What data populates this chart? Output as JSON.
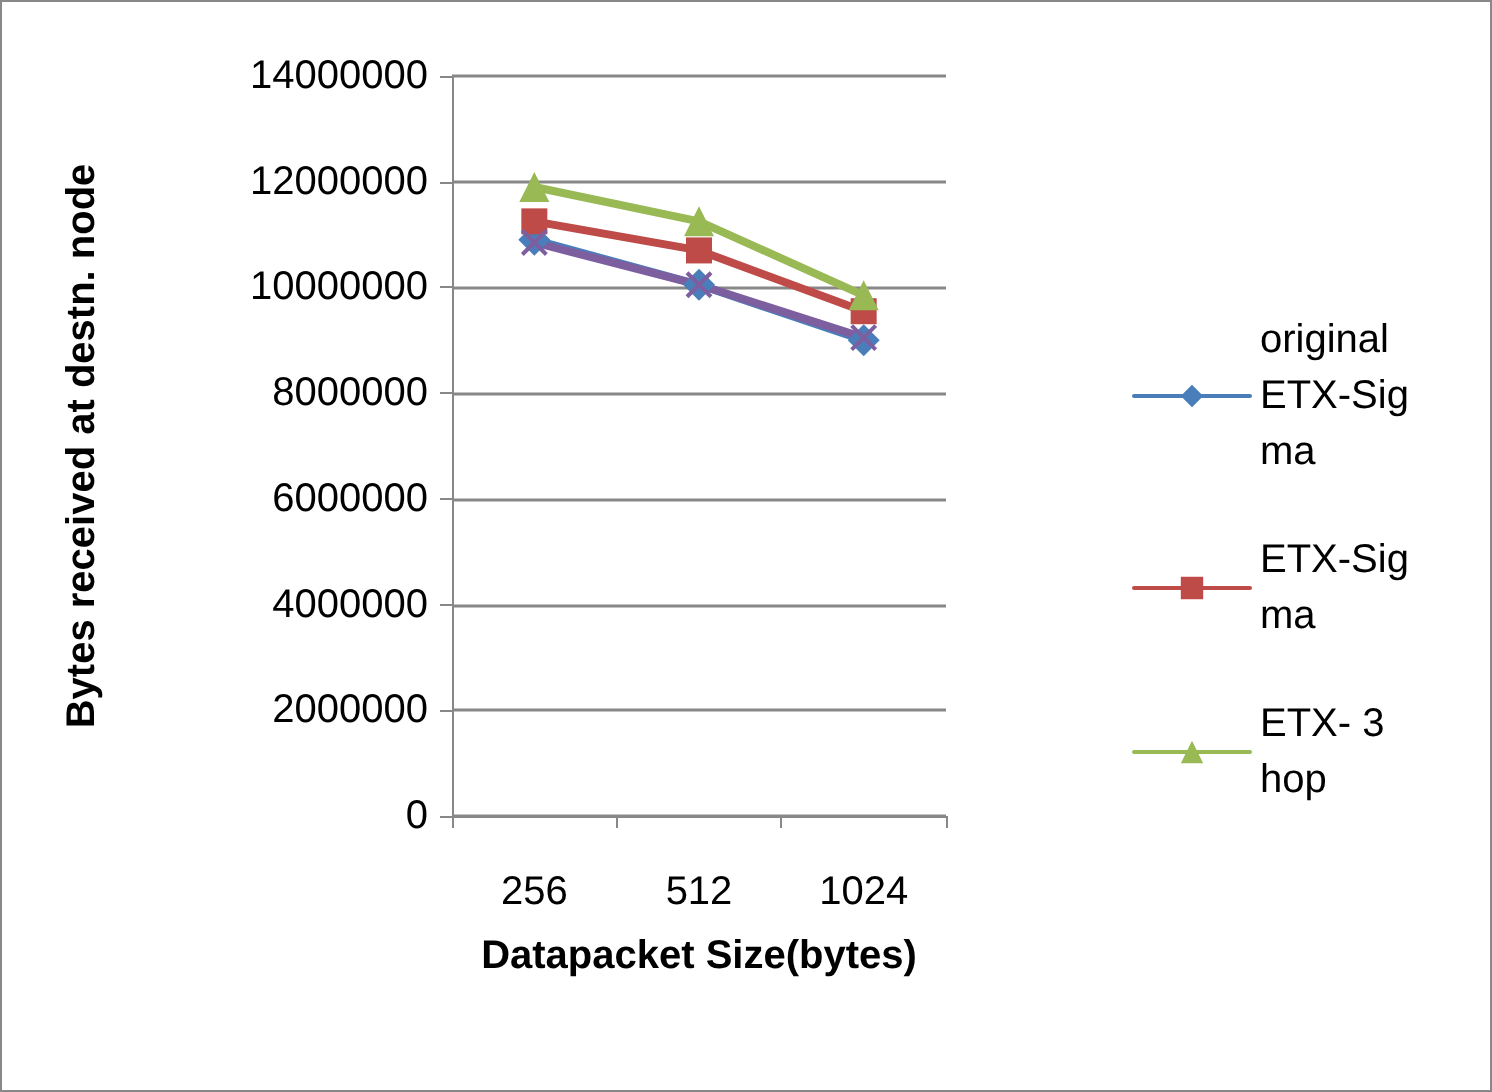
{
  "chart_data": {
    "type": "line",
    "xlabel": "Datapacket Size(bytes)",
    "ylabel": "Bytes received at destn. node",
    "categories": [
      "256",
      "512",
      "1024"
    ],
    "series": [
      {
        "name": "original ETX-Sigma",
        "color": "#4a7ebb",
        "marker": "diamond",
        "values": [
          10900000,
          10050000,
          9000000
        ]
      },
      {
        "name": "ETX-Sigma",
        "color": "#be4b48",
        "marker": "square",
        "values": [
          11250000,
          10700000,
          9550000
        ]
      },
      {
        "name": "ETX- 3 hop",
        "color": "#98b954",
        "marker": "triangle",
        "values": [
          11900000,
          11250000,
          9850000
        ]
      },
      {
        "color": "#7d5fa0",
        "marker": "cross",
        "values": [
          10850000,
          10050000,
          9050000
        ]
      }
    ],
    "ylim": [
      0,
      14000000
    ],
    "yticks": [
      0,
      2000000,
      4000000,
      6000000,
      8000000,
      10000000,
      12000000,
      14000000
    ],
    "grid": "y",
    "legend": "right"
  }
}
